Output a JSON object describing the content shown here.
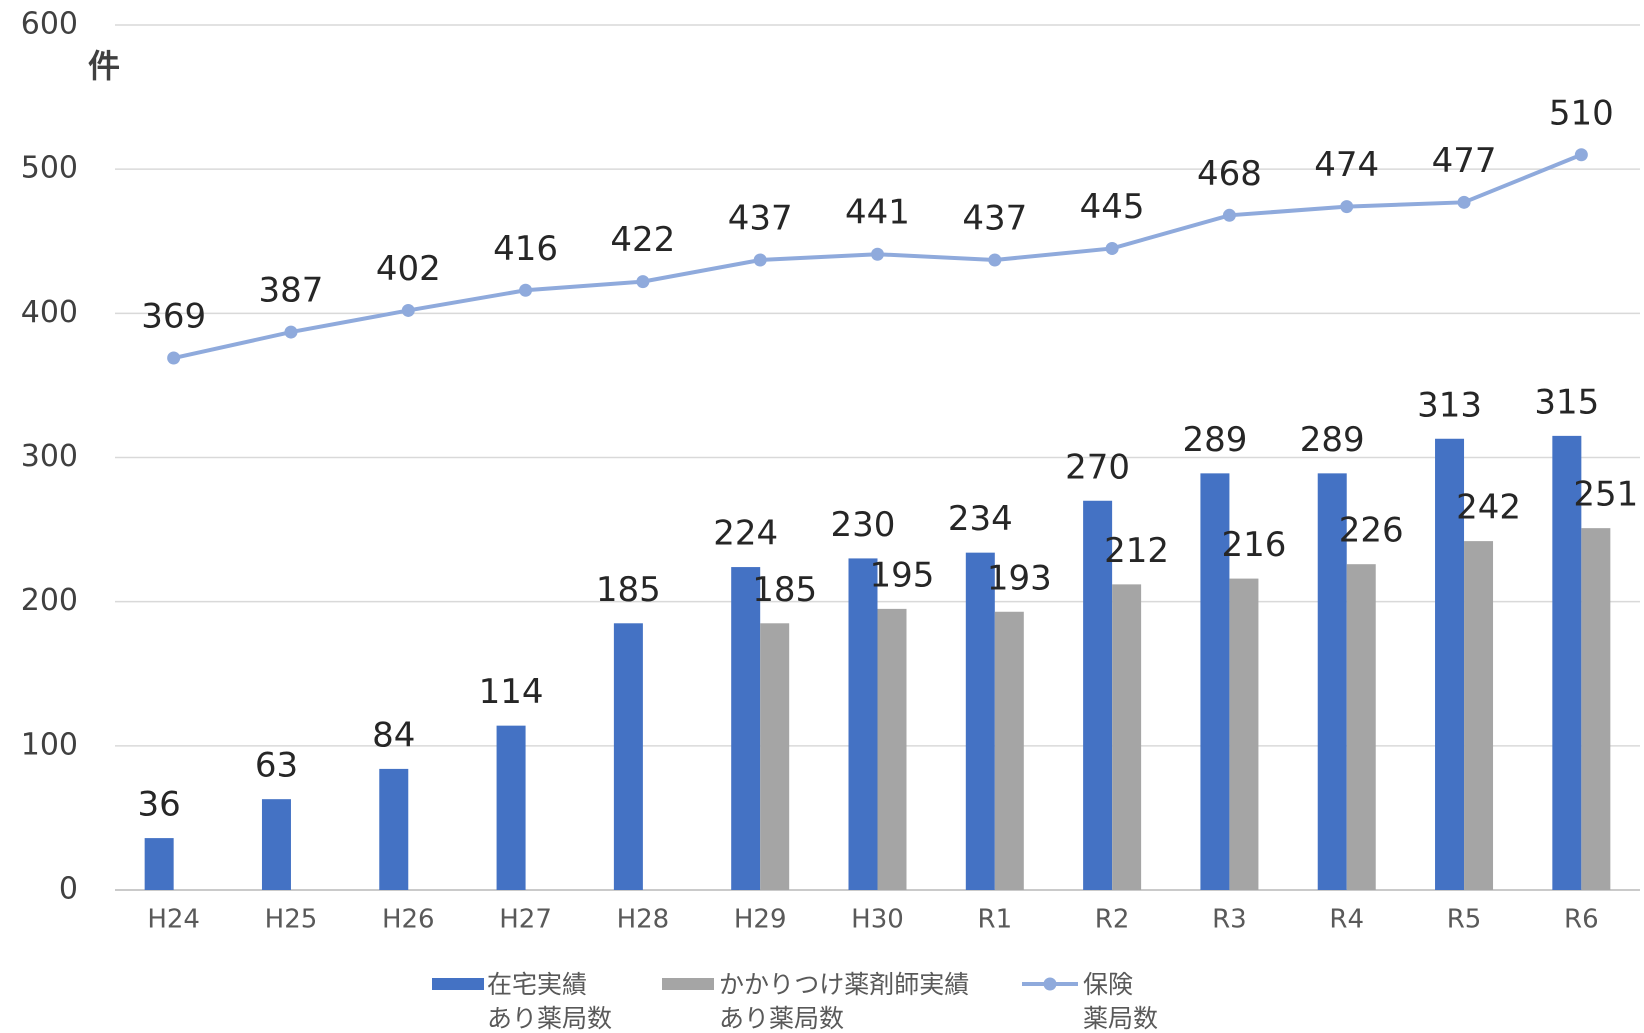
{
  "chart_data": {
    "type": "bar_line",
    "y_axis_label": "件",
    "categories": [
      "H24",
      "H25",
      "H26",
      "H27",
      "H28",
      "H29",
      "H30",
      "R1",
      "R2",
      "R3",
      "R4",
      "R5",
      "R6"
    ],
    "series": [
      {
        "name": "在宅実績\nあり薬局数",
        "type": "bar",
        "color": "#4472c4",
        "values": [
          36,
          63,
          84,
          114,
          185,
          224,
          230,
          234,
          270,
          289,
          289,
          313,
          315
        ]
      },
      {
        "name": "かかりつけ薬剤師実績\nあり薬局数",
        "type": "bar",
        "color": "#a5a5a5",
        "values": [
          null,
          null,
          null,
          null,
          null,
          185,
          195,
          193,
          212,
          216,
          226,
          242,
          251
        ]
      },
      {
        "name": "保険\n薬局数",
        "type": "line",
        "color": "#8faadc",
        "values": [
          369,
          387,
          402,
          416,
          422,
          437,
          441,
          437,
          445,
          468,
          474,
          477,
          510
        ]
      }
    ],
    "ylim": [
      0,
      600
    ],
    "yticks": [
      0,
      100,
      200,
      300,
      400,
      500,
      600
    ],
    "grid": true,
    "legend": "bottom"
  }
}
